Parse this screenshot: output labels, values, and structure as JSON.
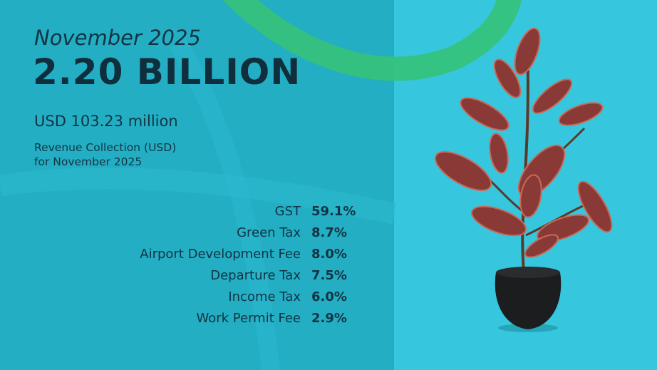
{
  "header": {
    "period": "November 2025",
    "headline": "2.20 BILLION",
    "usd": "USD 103.23 million",
    "caption": [
      "Revenue Collection (USD)",
      "for November 2025"
    ]
  },
  "breakdown": [
    {
      "label": "GST",
      "share": "59.1%"
    },
    {
      "label": "Green Tax",
      "share": "8.7%"
    },
    {
      "label": "Airport Development Fee",
      "share": "8.0%"
    },
    {
      "label": "Departure Tax",
      "share": "7.5%"
    },
    {
      "label": "Income Tax",
      "share": "6.0%"
    },
    {
      "label": "Work Permit Fee",
      "share": "2.9%"
    }
  ]
}
